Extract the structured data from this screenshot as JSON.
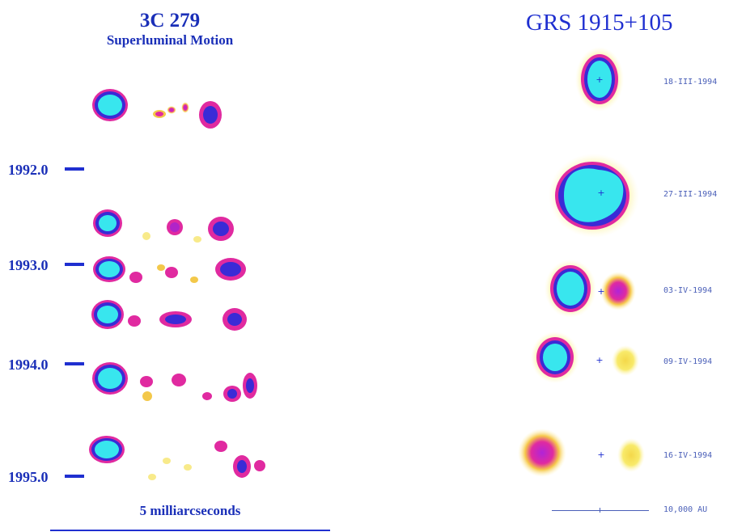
{
  "left_panel": {
    "title": "3C 279",
    "subtitle": "Superluminal Motion",
    "epochs": [
      "1992.0",
      "1993.0",
      "1994.0",
      "1995.0"
    ],
    "scale_label": "5 milliarcseconds"
  },
  "right_panel": {
    "title": "GRS 1915+105",
    "dates": [
      "18-III-1994",
      "27-III-1994",
      "03-IV-1994",
      "09-IV-1994",
      "16-IV-1994"
    ],
    "scale_label": "10,000 AU"
  },
  "colors": {
    "core": "#38e6ee",
    "ring": "#3a2bd6",
    "magenta": "#e02aa0",
    "yellow": "#f6e64a",
    "label_blue": "#1f2fd0"
  }
}
